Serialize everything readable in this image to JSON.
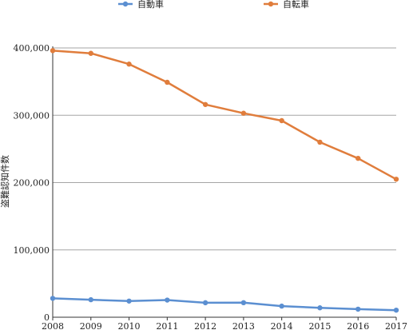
{
  "chart_data": {
    "type": "line",
    "title": "",
    "xlabel": "",
    "ylabel": "盗難認知件数",
    "x": [
      "2008",
      "2009",
      "2010",
      "2011",
      "2012",
      "2013",
      "2014",
      "2015",
      "2016",
      "2017"
    ],
    "ylim": [
      0,
      400000
    ],
    "yticks": [
      "0",
      "100,000",
      "200,000",
      "300,000",
      "400,000"
    ],
    "grid": true,
    "legend_position": "top",
    "series": [
      {
        "name": "自動車",
        "color": "#5b8fd1",
        "values": [
          28000,
          26000,
          24000,
          25500,
          21500,
          21600,
          16500,
          14000,
          12000,
          10500
        ]
      },
      {
        "name": "自転車",
        "color": "#e07d3c",
        "values": [
          396000,
          392000,
          376000,
          349000,
          316000,
          303000,
          292000,
          260000,
          236000,
          205000
        ]
      }
    ]
  }
}
